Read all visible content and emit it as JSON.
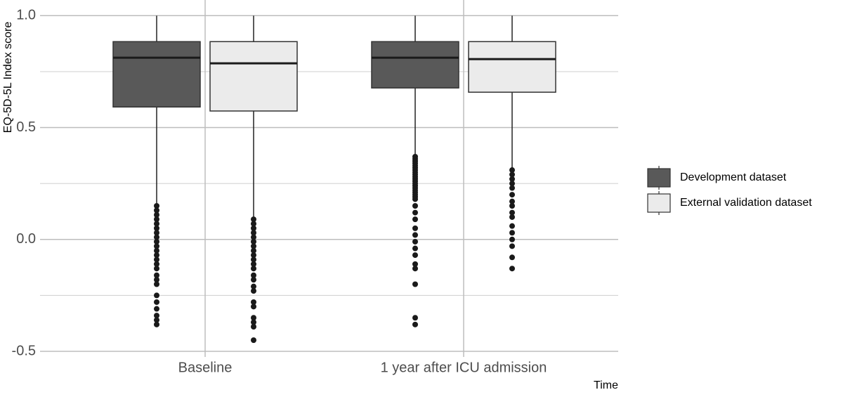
{
  "chart_data": {
    "type": "boxplot",
    "y_label": "EQ-5D-5L Index score",
    "x_label": "Time",
    "categories": [
      "Baseline",
      "1 year after ICU admission"
    ],
    "ylim": [
      -0.525,
      1.07
    ],
    "yticks": [
      {
        "value": -0.5,
        "label": "-0.5"
      },
      {
        "value": 0,
        "label": "0.0"
      },
      0.5,
      {
        "value": 1,
        "label": "1.0"
      }
    ],
    "minor_yticks": [
      -0.25,
      0.25,
      0.75
    ],
    "grid": true,
    "legend": "right",
    "series": [
      {
        "name": "Development dataset",
        "color": "#595959",
        "boxes": [
          {
            "min": 0.16,
            "q1": 0.592,
            "median": 0.812,
            "q3": 0.884,
            "max": 1,
            "outliers": [
              0.15,
              0.13,
              0.11,
              0.09,
              0.07,
              0.05,
              0.03,
              0.01,
              -0.01,
              -0.03,
              -0.05,
              -0.07,
              -0.09,
              -0.11,
              -0.13,
              -0.16,
              -0.18,
              -0.2,
              -0.25,
              -0.28,
              -0.31,
              -0.34,
              -0.36,
              -0.38
            ]
          },
          {
            "min": 0.373,
            "q1": 0.677,
            "median": 0.812,
            "q3": 0.884,
            "max": 1,
            "outliers": [
              0.37,
              0.36,
              0.35,
              0.34,
              0.33,
              0.32,
              0.31,
              0.3,
              0.29,
              0.28,
              0.27,
              0.26,
              0.25,
              0.24,
              0.23,
              0.22,
              0.21,
              0.2,
              0.19,
              0.18,
              0.15,
              0.12,
              0.09,
              0.05,
              0.02,
              -0.01,
              -0.04,
              -0.07,
              -0.11,
              -0.13,
              -0.2,
              -0.35,
              -0.38
            ]
          }
        ]
      },
      {
        "name": "External validation dataset",
        "color": "#ebebeb",
        "boxes": [
          {
            "min": 0.1,
            "q1": 0.574,
            "median": 0.787,
            "q3": 0.884,
            "max": 1,
            "outliers": [
              0.09,
              0.07,
              0.05,
              0.03,
              0.01,
              -0.01,
              -0.03,
              -0.05,
              -0.07,
              -0.09,
              -0.11,
              -0.13,
              -0.16,
              -0.18,
              -0.21,
              -0.23,
              -0.28,
              -0.3,
              -0.35,
              -0.37,
              -0.39,
              -0.45
            ]
          },
          {
            "min": 0.317,
            "q1": 0.658,
            "median": 0.806,
            "q3": 0.884,
            "max": 1,
            "outliers": [
              0.31,
              0.29,
              0.27,
              0.25,
              0.23,
              0.2,
              0.17,
              0.15,
              0.12,
              0.1,
              0.06,
              0.03,
              0,
              -0.03,
              -0.08,
              -0.13
            ]
          }
        ]
      }
    ]
  }
}
